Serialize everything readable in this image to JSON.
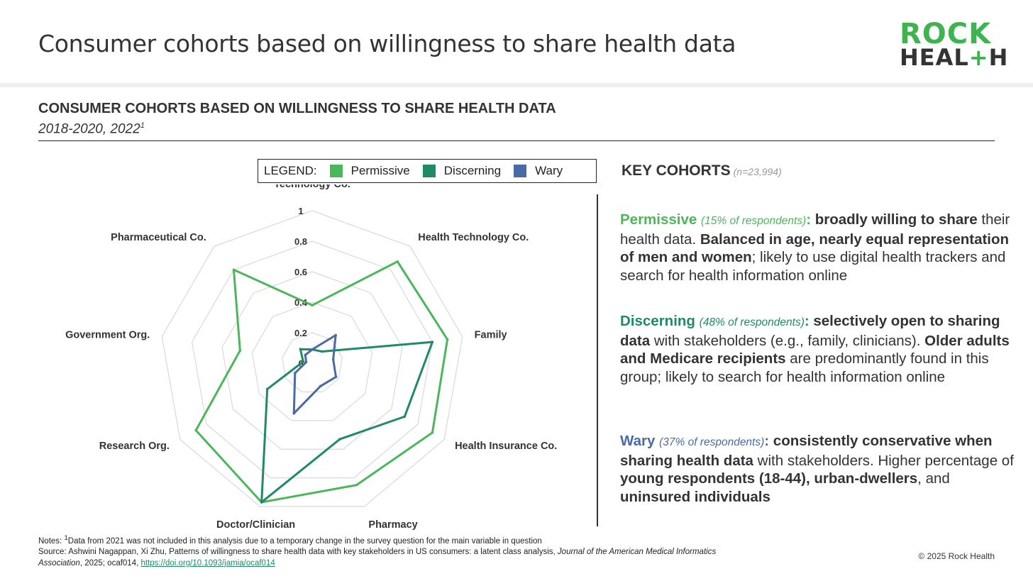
{
  "header": {
    "title": "Consumer cohorts based on willingness to share health data",
    "logo": {
      "line1": "ROCK",
      "line2_a": "HEAL",
      "line2_plus": "+",
      "line2_b": "H"
    }
  },
  "section": {
    "title": "CONSUMER COHORTS BASED ON WILLINGNESS TO SHARE HEALTH DATA",
    "subtitle": "2018-2020, 2022",
    "subtitle_sup": "1"
  },
  "legend": {
    "title": "LEGEND:",
    "items": [
      {
        "label": "Permissive",
        "color": "#4cb65b"
      },
      {
        "label": "Discerning",
        "color": "#1f8a64"
      },
      {
        "label": "Wary",
        "color": "#4a6aa5"
      }
    ]
  },
  "chart_data": {
    "type": "radar",
    "title": "CONSUMER COHORTS BASED ON WILLINGNESS TO SHARE HEALTH DATA",
    "subtitle": "2018-2020, 2022",
    "axes": [
      "Technology Co.",
      "Health Technology Co.",
      "Family",
      "Health Insurance Co.",
      "Pharmacy",
      "Doctor/Clinician",
      "Research Org.",
      "Government Org.",
      "Pharmaceutical Co."
    ],
    "rlim": [
      0,
      1
    ],
    "rticks": [
      "0",
      "0.2",
      "0.4",
      "0.6",
      "0.8",
      "1"
    ],
    "grid": true,
    "legend_position": "top",
    "series": [
      {
        "name": "Permissive",
        "color": "#4cb65b",
        "values": [
          0.38,
          0.87,
          0.9,
          0.91,
          0.85,
          0.97,
          0.88,
          0.48,
          0.8
        ]
      },
      {
        "name": "Discerning",
        "color": "#1f8a64",
        "values": [
          0.09,
          0.1,
          0.8,
          0.7,
          0.53,
          0.97,
          0.34,
          0.06,
          0.12
        ]
      },
      {
        "name": "Wary",
        "color": "#4a6aa5",
        "values": [
          0.09,
          0.24,
          0.14,
          0.18,
          0.16,
          0.35,
          0.13,
          0.04,
          0.07
        ]
      }
    ]
  },
  "key": {
    "title": "KEY COHORTS",
    "n": "(n=23,994)",
    "cohorts": [
      {
        "name": "Permissive",
        "pct": "(15% of respondents)",
        "colon": ":",
        "b1": " broadly willing to share",
        "t1": " their health data. ",
        "b2": "Balanced in age, nearly equal representation of men and women",
        "t2": "; likely to use digital health trackers and search for health information online"
      },
      {
        "name": "Discerning",
        "pct": "(48% of respondents)",
        "colon": ":",
        "b1": " selectively open to sharing data",
        "t1": " with stakeholders (e.g., family, clinicians). ",
        "b2": "Older adults and Medicare recipients",
        "t2": " are predominantly found in this group; likely to search for health information online"
      },
      {
        "name": "Wary",
        "pct": "(37% of respondents)",
        "colon": ":",
        "b1": " consistently conservative when sharing health data",
        "t1": " with stakeholders. Higher percentage of ",
        "b2": "young respondents (18-44), urban-dwellers",
        "t2": ", and ",
        "b3": "uninsured individuals"
      }
    ]
  },
  "notes": {
    "line1_prefix": "Notes: ",
    "line1_sup": "1",
    "line1": "Data from 2021 was not included in this analysis due to a temporary change in the survey question for the main variable in question",
    "source_prefix": "Source: Ashwini Nagappan, Xi Zhu, Patterns of willingness to share health data with key stakeholders in US consumers: a latent class analysis, ",
    "source_journal": "Journal of the American Medical Informatics Association",
    "source_suffix": ", 2025; ocaf014, ",
    "source_link": "https://doi.org/10.1093/jamia/ocaf014",
    "copyright": "© 2025 Rock Health"
  }
}
